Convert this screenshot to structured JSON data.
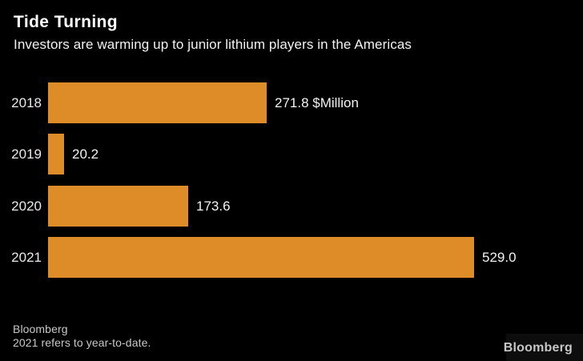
{
  "header": {
    "title": "Tide Turning",
    "subtitle": "Investors are warming up to junior lithium players in the Americas"
  },
  "chart_data": {
    "type": "bar",
    "orientation": "horizontal",
    "title": "Tide Turning",
    "subtitle": "Investors are warming up to junior lithium players in the Americas",
    "categories": [
      "2018",
      "2019",
      "2020",
      "2021"
    ],
    "values": [
      271.8,
      20.2,
      173.6,
      529.0
    ],
    "value_labels": [
      "271.8 $Million",
      "20.2",
      "173.6",
      "529.0"
    ],
    "unit": "$Million",
    "xlim": [
      0,
      529
    ],
    "grid": false,
    "legend": "none",
    "bar_color": "#DE8C27",
    "background_color": "#000000"
  },
  "footer": {
    "source": "Bloomberg",
    "note": "2021 refers to year-to-date."
  },
  "branding": {
    "logo_text": "Bloomberg"
  },
  "colors": {
    "background": "#000000",
    "bar": "#DE8C27",
    "title_text": "#ffffff",
    "label_text": "#e8e8e8",
    "footer_text": "#c9c9c9"
  }
}
